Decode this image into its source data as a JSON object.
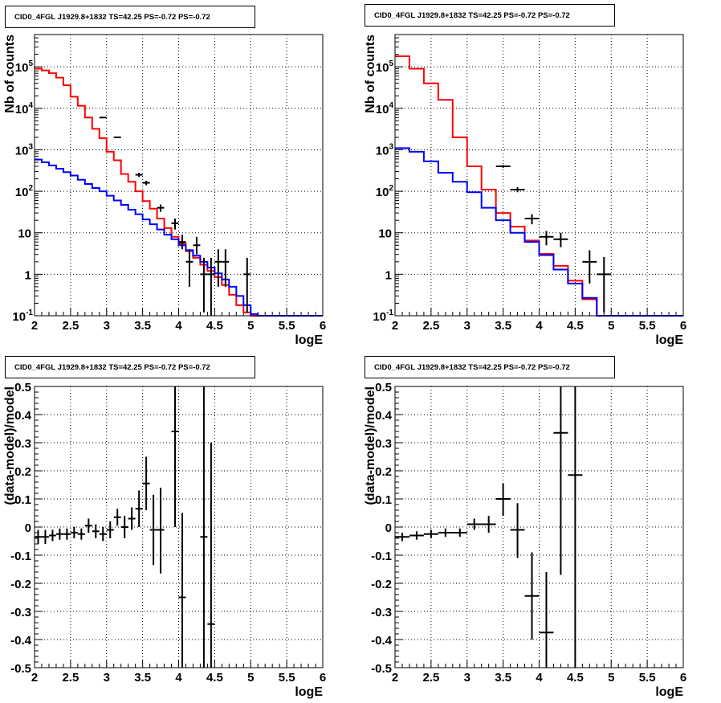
{
  "chart_data": [
    {
      "type": "line",
      "title": "CID0_4FGL J1929.8+1832 TS=42.25 PS=-0.72 PS=-0.72",
      "xlabel": "logE",
      "ylabel": "Nb of counts",
      "yscale": "log",
      "xlim": [
        2,
        6
      ],
      "ylim": [
        0.1,
        600000
      ],
      "grid": true,
      "xticks": [
        "2",
        "2.5",
        "3",
        "3.5",
        "4",
        "4.5",
        "5",
        "5.5",
        "6"
      ],
      "yticks": [
        {
          "value": 0.1,
          "label": "10",
          "sup": "-1"
        },
        {
          "value": 1,
          "label": "1",
          "sup": ""
        },
        {
          "value": 10,
          "label": "10",
          "sup": ""
        },
        {
          "value": 100,
          "label": "10",
          "sup": "2"
        },
        {
          "value": 1000,
          "label": "10",
          "sup": "3"
        },
        {
          "value": 10000,
          "label": "10",
          "sup": "4"
        },
        {
          "value": 100000,
          "label": "10",
          "sup": "5"
        }
      ],
      "bin_width": 0.1,
      "bin_start": 2.0,
      "series": [
        {
          "color": "#ff0000",
          "style": "hist",
          "values": [
            90000,
            82000,
            70000,
            55000,
            36000,
            19000,
            11500,
            6000,
            3200,
            1900,
            900,
            560,
            260,
            170,
            100,
            58,
            38,
            22,
            13,
            8,
            5.5,
            3.6,
            2.5,
            1.7,
            1.2,
            0.85,
            0.55,
            0.32,
            0.18,
            0.12,
            0.1,
            0.1,
            0.1,
            0.1,
            0.1,
            0.1,
            0.1,
            0.1,
            0.1,
            0.1
          ]
        },
        {
          "color": "#0000ff",
          "style": "hist",
          "values": [
            580,
            500,
            420,
            350,
            290,
            240,
            190,
            150,
            120,
            100,
            78,
            60,
            47,
            36,
            28,
            21,
            16,
            12,
            9,
            7,
            5,
            3.8,
            2.8,
            2.0,
            1.45,
            1.05,
            0.75,
            0.5,
            0.3,
            0.18,
            0.11,
            0.1,
            0.1,
            0.1,
            0.1,
            0.1,
            0.1,
            0.1,
            0.1,
            0.1
          ]
        }
      ],
      "points": {
        "color": "#000000",
        "style": "errorbar",
        "xerr": 0.05,
        "data": [
          {
            "x": 2.95,
            "y": 6000,
            "lo": 5800,
            "hi": 6200
          },
          {
            "x": 3.15,
            "y": 2000,
            "lo": 1920,
            "hi": 2080
          },
          {
            "x": 3.45,
            "y": 250,
            "lo": 220,
            "hi": 280
          },
          {
            "x": 3.55,
            "y": 160,
            "lo": 140,
            "hi": 180
          },
          {
            "x": 3.75,
            "y": 40,
            "lo": 32,
            "hi": 48
          },
          {
            "x": 3.95,
            "y": 17,
            "lo": 12,
            "hi": 22
          },
          {
            "x": 4.05,
            "y": 6,
            "lo": 4,
            "hi": 9
          },
          {
            "x": 4.15,
            "y": 2,
            "lo": 0.5,
            "hi": 4
          },
          {
            "x": 4.25,
            "y": 5,
            "lo": 3,
            "hi": 8
          },
          {
            "x": 4.35,
            "y": 1,
            "lo": 0.12,
            "hi": 2.5
          },
          {
            "x": 4.45,
            "y": 1,
            "lo": 0.1,
            "hi": 2.5
          },
          {
            "x": 4.55,
            "y": 2,
            "lo": 0.5,
            "hi": 4
          },
          {
            "x": 4.65,
            "y": 2,
            "lo": 0.5,
            "hi": 4
          },
          {
            "x": 4.95,
            "y": 1,
            "lo": 0.12,
            "hi": 2.5
          }
        ]
      }
    },
    {
      "type": "line",
      "title": "CID0_4FGL J1929.8+1832 TS=42.25 PS=-0.72 PS=-0.72",
      "xlabel": "logE",
      "ylabel": "Nb of counts",
      "yscale": "log",
      "xlim": [
        2,
        6
      ],
      "ylim": [
        0.1,
        600000
      ],
      "grid": true,
      "xticks": [
        "2",
        "2.5",
        "3",
        "3.5",
        "4",
        "4.5",
        "5",
        "5.5",
        "6"
      ],
      "yticks": [
        {
          "value": 0.1,
          "label": "10",
          "sup": "-1"
        },
        {
          "value": 1,
          "label": "1",
          "sup": ""
        },
        {
          "value": 10,
          "label": "10",
          "sup": ""
        },
        {
          "value": 100,
          "label": "10",
          "sup": "2"
        },
        {
          "value": 1000,
          "label": "10",
          "sup": "3"
        },
        {
          "value": 10000,
          "label": "10",
          "sup": "4"
        },
        {
          "value": 100000,
          "label": "10",
          "sup": "5"
        }
      ],
      "bin_width": 0.2,
      "bin_start": 2.0,
      "series": [
        {
          "color": "#ff0000",
          "style": "hist",
          "values": [
            180000,
            90000,
            40000,
            16000,
            2000,
            400,
            110,
            30,
            14,
            6.5,
            3.1,
            1.6,
            0.7,
            0.25,
            0.1,
            0.1,
            0.1,
            0.1,
            0.1,
            0.1
          ]
        },
        {
          "color": "#0000ff",
          "style": "hist",
          "values": [
            1100,
            900,
            530,
            280,
            170,
            95,
            40,
            20,
            10,
            6,
            2.9,
            1.3,
            0.6,
            0.27,
            0.1,
            0.1,
            0.1,
            0.1,
            0.1,
            0.1
          ]
        }
      ],
      "points": {
        "color": "#000000",
        "style": "errorbar",
        "xerr": 0.1,
        "data": [
          {
            "x": 3.5,
            "y": 400,
            "lo": 370,
            "hi": 430
          },
          {
            "x": 3.7,
            "y": 110,
            "lo": 95,
            "hi": 125
          },
          {
            "x": 3.9,
            "y": 22,
            "lo": 16,
            "hi": 28
          },
          {
            "x": 4.1,
            "y": 8,
            "lo": 5,
            "hi": 11
          },
          {
            "x": 4.3,
            "y": 7,
            "lo": 4.5,
            "hi": 10
          },
          {
            "x": 4.7,
            "y": 2,
            "lo": 0.6,
            "hi": 3.8
          },
          {
            "x": 4.9,
            "y": 1,
            "lo": 0.12,
            "hi": 2.6
          }
        ]
      }
    },
    {
      "type": "scatter",
      "title": "CID0_4FGL J1929.8+1832 TS=42.25 PS=-0.72 PS=-0.72",
      "xlabel": "logE",
      "ylabel": "(data-model)/model",
      "yscale": "linear",
      "xlim": [
        2,
        6
      ],
      "ylim": [
        -0.5,
        0.5
      ],
      "grid": true,
      "xticks": [
        "2",
        "2.5",
        "3",
        "3.5",
        "4",
        "4.5",
        "5",
        "5.5",
        "6"
      ],
      "yticks": [
        {
          "value": -0.5,
          "label": "-0.5"
        },
        {
          "value": -0.4,
          "label": "-0.4"
        },
        {
          "value": -0.3,
          "label": "-0.3"
        },
        {
          "value": -0.2,
          "label": "-0.2"
        },
        {
          "value": -0.1,
          "label": "-0.1"
        },
        {
          "value": 0,
          "label": "0"
        },
        {
          "value": 0.1,
          "label": "0.1"
        },
        {
          "value": 0.2,
          "label": "0.2"
        },
        {
          "value": 0.3,
          "label": "0.3"
        },
        {
          "value": 0.4,
          "label": "0.4"
        },
        {
          "value": 0.5,
          "label": "0.5"
        }
      ],
      "points": {
        "color": "#000000",
        "style": "errorbar",
        "xerr": 0.05,
        "data": [
          {
            "x": 2.05,
            "y": -0.035,
            "lo": -0.06,
            "hi": -0.01
          },
          {
            "x": 2.15,
            "y": -0.035,
            "lo": -0.06,
            "hi": -0.01
          },
          {
            "x": 2.25,
            "y": -0.03,
            "lo": -0.05,
            "hi": -0.01
          },
          {
            "x": 2.35,
            "y": -0.025,
            "lo": -0.045,
            "hi": -0.005
          },
          {
            "x": 2.45,
            "y": -0.025,
            "lo": -0.045,
            "hi": -0.005
          },
          {
            "x": 2.55,
            "y": -0.02,
            "lo": -0.04,
            "hi": 0.0
          },
          {
            "x": 2.65,
            "y": -0.025,
            "lo": -0.045,
            "hi": -0.005
          },
          {
            "x": 2.75,
            "y": 0.005,
            "lo": -0.02,
            "hi": 0.03
          },
          {
            "x": 2.85,
            "y": -0.015,
            "lo": -0.04,
            "hi": 0.01
          },
          {
            "x": 2.95,
            "y": -0.025,
            "lo": -0.05,
            "hi": 0.0
          },
          {
            "x": 3.05,
            "y": -0.01,
            "lo": -0.04,
            "hi": 0.02
          },
          {
            "x": 3.15,
            "y": 0.035,
            "lo": 0.005,
            "hi": 0.065
          },
          {
            "x": 3.25,
            "y": 0.0,
            "lo": -0.04,
            "hi": 0.04
          },
          {
            "x": 3.35,
            "y": 0.03,
            "lo": -0.01,
            "hi": 0.07
          },
          {
            "x": 3.45,
            "y": 0.065,
            "lo": 0.0,
            "hi": 0.13
          },
          {
            "x": 3.55,
            "y": 0.155,
            "lo": 0.06,
            "hi": 0.25
          },
          {
            "x": 3.65,
            "y": -0.01,
            "lo": -0.135,
            "hi": 0.115
          },
          {
            "x": 3.75,
            "y": -0.01,
            "lo": -0.165,
            "hi": 0.14
          },
          {
            "x": 3.95,
            "y": 0.34,
            "lo": 0.0,
            "hi": 0.5
          },
          {
            "x": 4.05,
            "y": -0.25,
            "lo": -0.5,
            "hi": 0.05
          },
          {
            "x": 4.35,
            "y": -0.035,
            "lo": -0.5,
            "hi": 0.5
          },
          {
            "x": 4.45,
            "y": -0.345,
            "lo": -0.5,
            "hi": 0.3
          }
        ]
      }
    },
    {
      "type": "scatter",
      "title": "CID0_4FGL J1929.8+1832 TS=42.25 PS=-0.72 PS=-0.72",
      "xlabel": "logE",
      "ylabel": "(data-model)/model",
      "yscale": "linear",
      "xlim": [
        2,
        6
      ],
      "ylim": [
        -0.5,
        0.5
      ],
      "grid": true,
      "xticks": [
        "2",
        "2.5",
        "3",
        "3.5",
        "4",
        "4.5",
        "5",
        "5.5",
        "6"
      ],
      "yticks": [
        {
          "value": -0.5,
          "label": "-0.5"
        },
        {
          "value": -0.4,
          "label": "-0.4"
        },
        {
          "value": -0.3,
          "label": "-0.3"
        },
        {
          "value": -0.2,
          "label": "-0.2"
        },
        {
          "value": -0.1,
          "label": "-0.1"
        },
        {
          "value": 0,
          "label": "0"
        },
        {
          "value": 0.1,
          "label": "0.1"
        },
        {
          "value": 0.2,
          "label": "0.2"
        },
        {
          "value": 0.3,
          "label": "0.3"
        },
        {
          "value": 0.4,
          "label": "0.4"
        },
        {
          "value": 0.5,
          "label": "0.5"
        }
      ],
      "points": {
        "color": "#000000",
        "style": "errorbar",
        "xerr": 0.1,
        "data": [
          {
            "x": 2.1,
            "y": -0.035,
            "lo": -0.05,
            "hi": -0.02
          },
          {
            "x": 2.3,
            "y": -0.03,
            "lo": -0.045,
            "hi": -0.015
          },
          {
            "x": 2.5,
            "y": -0.025,
            "lo": -0.04,
            "hi": -0.01
          },
          {
            "x": 2.7,
            "y": -0.02,
            "lo": -0.035,
            "hi": -0.005
          },
          {
            "x": 2.9,
            "y": -0.02,
            "lo": -0.035,
            "hi": -0.005
          },
          {
            "x": 3.1,
            "y": 0.01,
            "lo": -0.01,
            "hi": 0.03
          },
          {
            "x": 3.3,
            "y": 0.01,
            "lo": -0.02,
            "hi": 0.04
          },
          {
            "x": 3.5,
            "y": 0.1,
            "lo": 0.04,
            "hi": 0.155
          },
          {
            "x": 3.7,
            "y": -0.01,
            "lo": -0.11,
            "hi": 0.085
          },
          {
            "x": 3.9,
            "y": -0.245,
            "lo": -0.4,
            "hi": -0.09
          },
          {
            "x": 4.1,
            "y": -0.375,
            "lo": -0.5,
            "hi": -0.16
          },
          {
            "x": 4.3,
            "y": 0.335,
            "lo": -0.17,
            "hi": 0.5
          },
          {
            "x": 4.5,
            "y": 0.185,
            "lo": -0.5,
            "hi": 0.5
          }
        ]
      }
    }
  ]
}
